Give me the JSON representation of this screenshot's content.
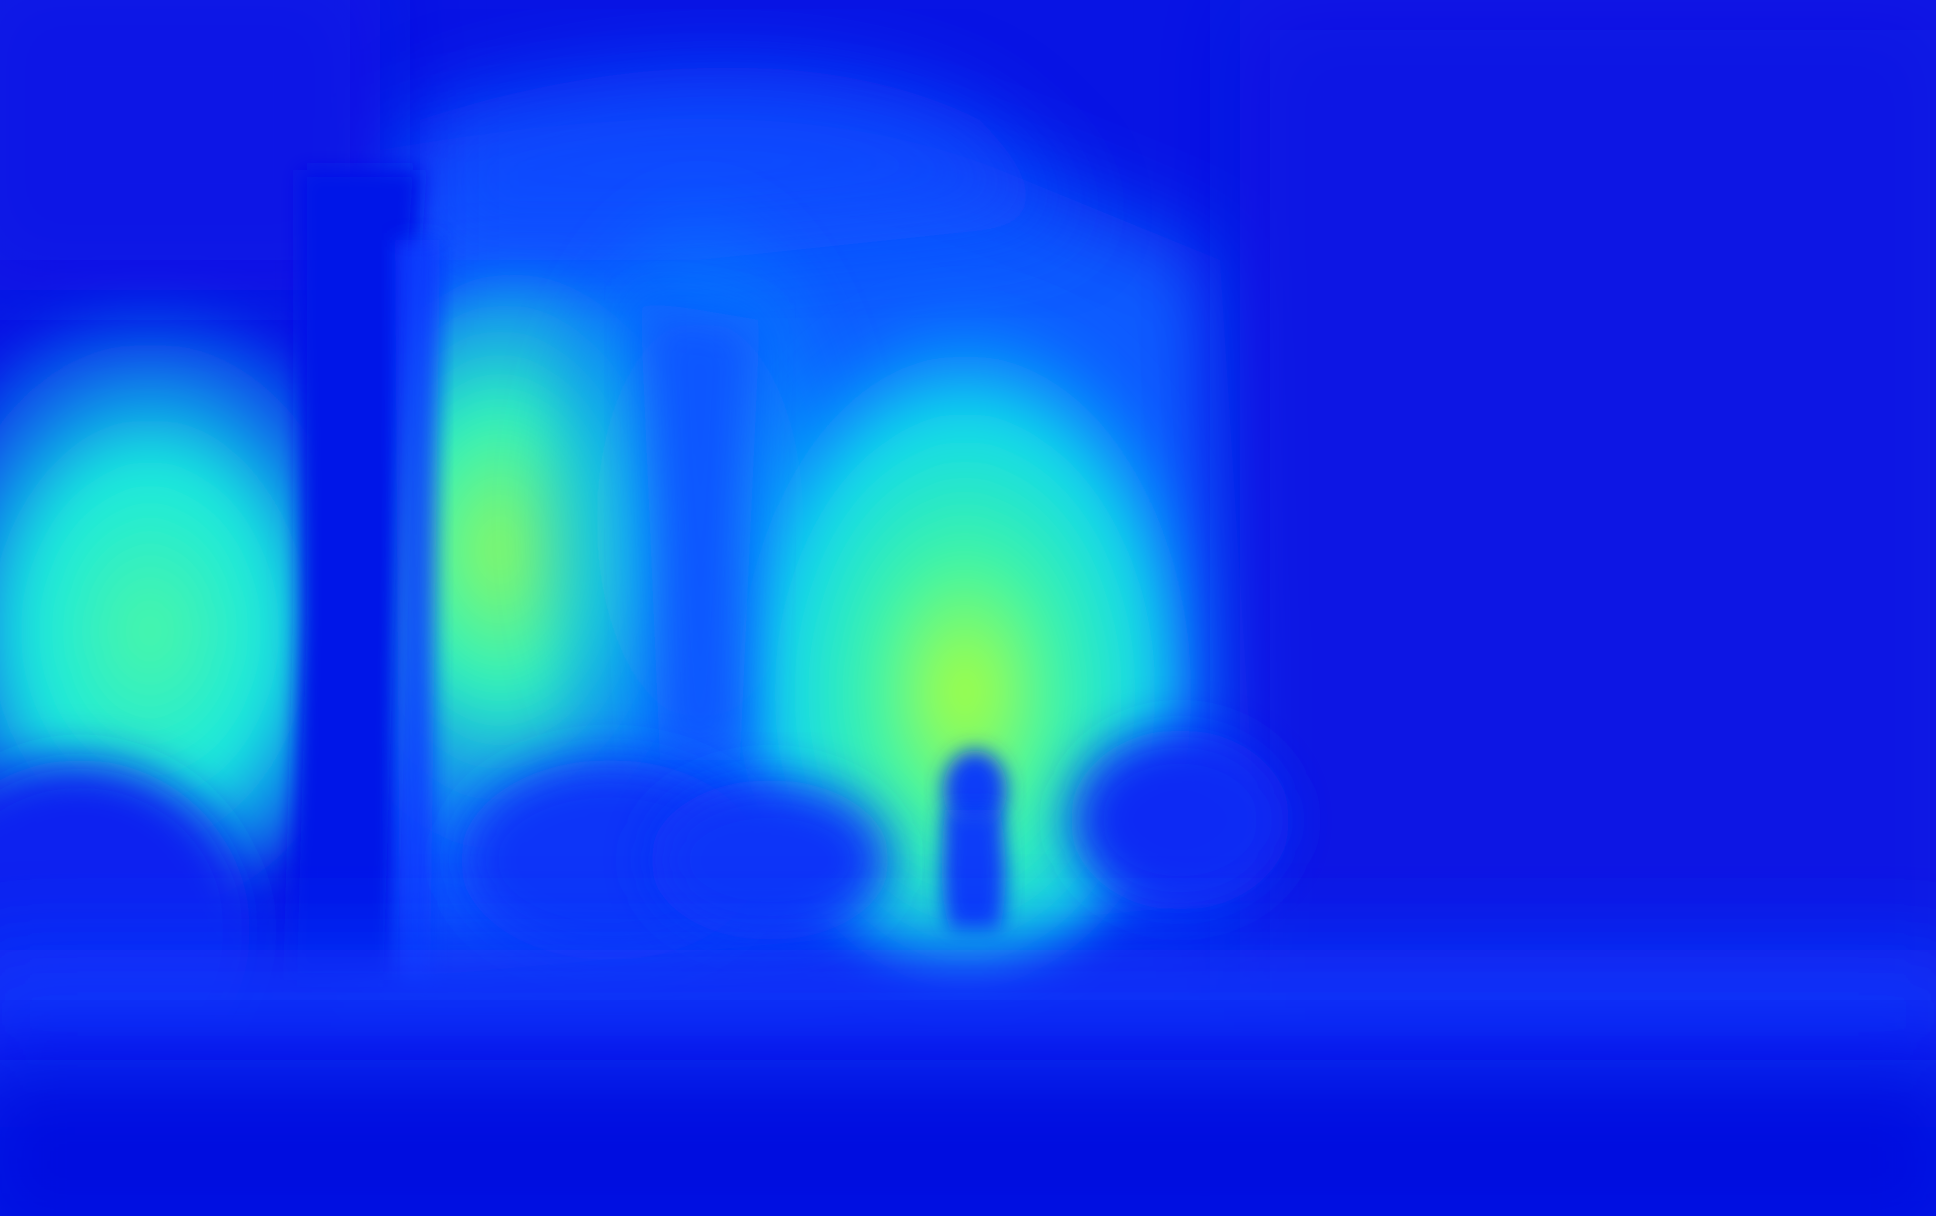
{
  "image": {
    "kind": "depth-map",
    "colormap": "jet",
    "palette": {
      "far": "#0a10e0",
      "deep": "#0018ff",
      "mid": "#0a6cff",
      "cyan": "#10e6ee",
      "aqua": "#20f2c8",
      "near": "#a8ff3a"
    }
  }
}
